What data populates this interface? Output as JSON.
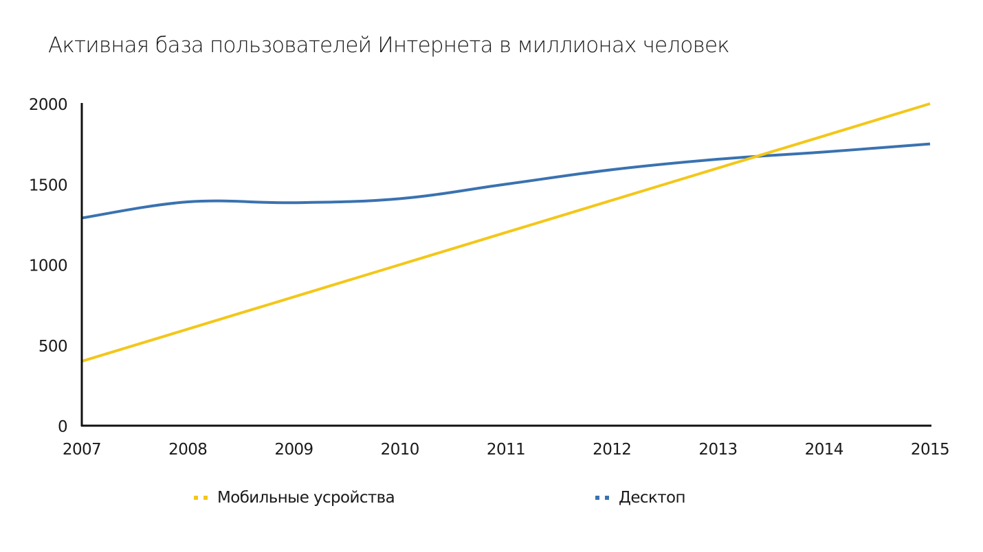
{
  "title": "Активная база пользователей Интернета в миллионах человек",
  "colors": {
    "mobile": "#F3C719",
    "desktop": "#3A72B0",
    "axis": "#111111"
  },
  "legend": [
    {
      "label": "Мобильные усройства",
      "color": "#F3C719"
    },
    {
      "label": "Десктоп",
      "color": "#3A72B0"
    }
  ],
  "chart_data": {
    "type": "line",
    "title": "Активная база пользователей Интернета в миллионах человек",
    "xlabel": "",
    "ylabel": "",
    "x": [
      "2007",
      "2008",
      "2009",
      "2010",
      "2011",
      "2012",
      "2013",
      "2014",
      "2015"
    ],
    "yticks": [
      0,
      500,
      1000,
      1500,
      2000
    ],
    "ylim": [
      0,
      2000
    ],
    "grid": false,
    "legend_position": "bottom",
    "series": [
      {
        "name": "Мобильные усройства",
        "color": "#F3C719",
        "values": [
          400,
          600,
          800,
          1000,
          1200,
          1400,
          1600,
          1800,
          2000
        ]
      },
      {
        "name": "Десктоп",
        "color": "#3A72B0",
        "values": [
          1290,
          1390,
          1385,
          1410,
          1500,
          1590,
          1655,
          1700,
          1750
        ]
      }
    ]
  }
}
